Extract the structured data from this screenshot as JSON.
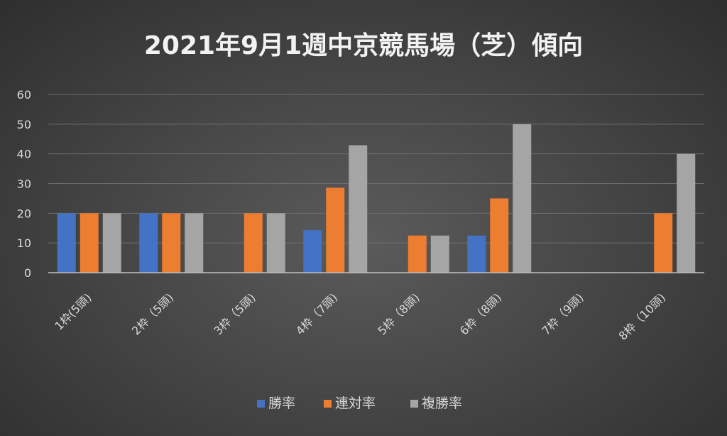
{
  "chart_data": {
    "type": "bar",
    "title": "2021年9月1週中京競馬場（芝）傾向",
    "categories": [
      "1枠(5頭)",
      "2枠（5頭)",
      "3枠（5頭)",
      "4枠（7頭)",
      "5枠（8頭)",
      "6枠（8頭)",
      "7枠（9頭)",
      "8枠（10頭)"
    ],
    "series": [
      {
        "name": "勝率",
        "color": "#4472c4",
        "values": [
          20,
          20,
          0,
          14.3,
          0,
          12.5,
          0,
          0
        ]
      },
      {
        "name": "連対率",
        "color": "#ed7d31",
        "values": [
          20,
          20,
          20,
          28.6,
          12.5,
          25,
          0,
          20
        ]
      },
      {
        "name": "複勝率",
        "color": "#a5a5a5",
        "values": [
          20,
          20,
          20,
          42.9,
          12.5,
          50,
          0,
          40
        ]
      }
    ],
    "ylim": [
      0,
      60
    ],
    "yticks": [
      0,
      10,
      20,
      30,
      40,
      50,
      60
    ],
    "grid": true,
    "legend_position": "bottom"
  }
}
